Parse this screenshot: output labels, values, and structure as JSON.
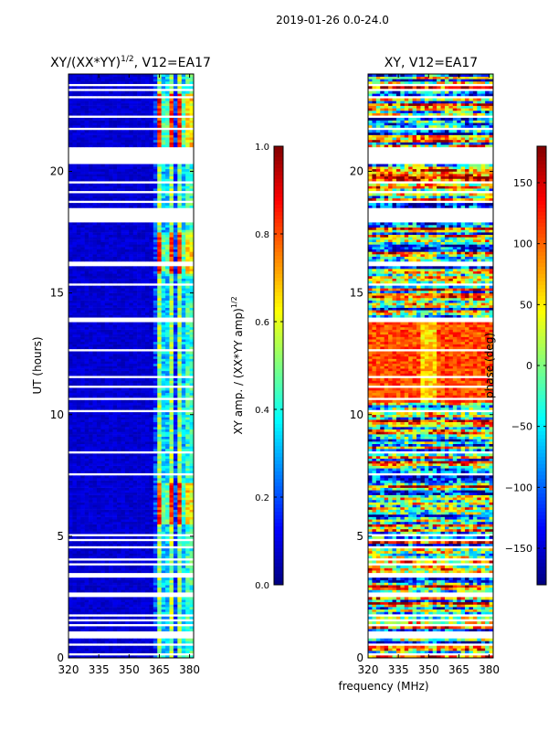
{
  "figure_title": "2019-01-26 0.0-24.0",
  "colors": {
    "no_data": "#ffffff",
    "jet": [
      "#00007f",
      "#0000ff",
      "#007fff",
      "#00ffff",
      "#7fff7f",
      "#ffff00",
      "#ff7f00",
      "#ff0000",
      "#7f0000"
    ]
  },
  "chart_data": [
    {
      "type": "heatmap",
      "title": "XY/(XX*YY)",
      "title_exponent": "1/2",
      "title_suffix": ", V12=EA17",
      "xlabel": "",
      "ylabel": "UT (hours)",
      "xlim": [
        320,
        382
      ],
      "ylim": [
        0,
        24
      ],
      "xticks": [
        320,
        335,
        350,
        365,
        380
      ],
      "yticks": [
        0,
        5,
        10,
        15,
        20
      ],
      "colorbar": {
        "label": "XY amp. / (XX*YY amp)",
        "label_exponent": "1/2",
        "range": [
          0.0,
          1.0
        ],
        "ticks": [
          "0.0",
          "0.2",
          "0.4",
          "0.6",
          "0.8",
          "1.0"
        ],
        "tick_values": [
          0.0,
          0.2,
          0.4,
          0.6,
          0.8,
          1.0
        ]
      },
      "structure": {
        "background_level": 0.08,
        "active_band_mhz": [
          362,
          381
        ],
        "active_channel_centers_mhz": [
          365.5,
          370.5,
          375.5,
          380
        ],
        "active_level": 0.45,
        "strong_intervals_hours": [
          [
            5.5,
            7.2
          ],
          [
            15.8,
            17.5
          ],
          [
            20.8,
            23.2
          ]
        ],
        "strong_level": 0.85
      }
    },
    {
      "type": "heatmap",
      "title": "XY, V12=EA17",
      "xlabel": "frequency (MHz)",
      "ylabel": "",
      "xlim": [
        320,
        382
      ],
      "ylim": [
        0,
        24
      ],
      "xticks": [
        320,
        335,
        350,
        365,
        380
      ],
      "yticks": [
        0,
        5,
        10,
        15,
        20
      ],
      "colorbar": {
        "label": "phase (deg)",
        "range": [
          -180,
          180
        ],
        "ticks": [
          "150",
          "100",
          "50",
          "0",
          "−50",
          "−100",
          "−150"
        ],
        "tick_values": [
          150,
          100,
          50,
          0,
          -50,
          -100,
          -150
        ]
      },
      "structure": {
        "dominant_phase_band_hours": [
          10.5,
          14
        ],
        "dominant_phase_deg": 110,
        "noisy_phase_elsewhere": true
      }
    }
  ],
  "flagged_ut_gaps_hours": [
    [
      0.1,
      0.18
    ],
    [
      0.55,
      0.62
    ],
    [
      0.85,
      1.1
    ],
    [
      1.3,
      1.38
    ],
    [
      1.5,
      1.58
    ],
    [
      1.7,
      1.78
    ],
    [
      2.55,
      2.7
    ],
    [
      3.3,
      3.55
    ],
    [
      3.85,
      3.9
    ],
    [
      4.05,
      4.1
    ],
    [
      4.3,
      4.35
    ],
    [
      4.55,
      4.6
    ],
    [
      4.85,
      4.9
    ],
    [
      5.05,
      5.1
    ],
    [
      7.5,
      7.56
    ],
    [
      8.45,
      8.51
    ],
    [
      9.9,
      9.95
    ],
    [
      10.1,
      10.15
    ],
    [
      10.3,
      10.35
    ],
    [
      10.6,
      10.68
    ],
    [
      11.1,
      11.15
    ],
    [
      11.5,
      11.55
    ],
    [
      12.6,
      12.65
    ],
    [
      13.3,
      13.35
    ],
    [
      13.85,
      14.0
    ],
    [
      14.4,
      14.45
    ],
    [
      14.8,
      14.85
    ],
    [
      15.3,
      15.36
    ],
    [
      16.1,
      16.3
    ],
    [
      17.6,
      17.65
    ],
    [
      17.95,
      18.45
    ],
    [
      18.75,
      18.8
    ],
    [
      19.15,
      19.2
    ],
    [
      19.5,
      19.55
    ],
    [
      20.3,
      21.0
    ],
    [
      21.7,
      21.76
    ],
    [
      22.2,
      22.26
    ],
    [
      22.6,
      22.65
    ],
    [
      23.05,
      23.1
    ],
    [
      23.3,
      23.35
    ],
    [
      23.55,
      23.6
    ]
  ]
}
